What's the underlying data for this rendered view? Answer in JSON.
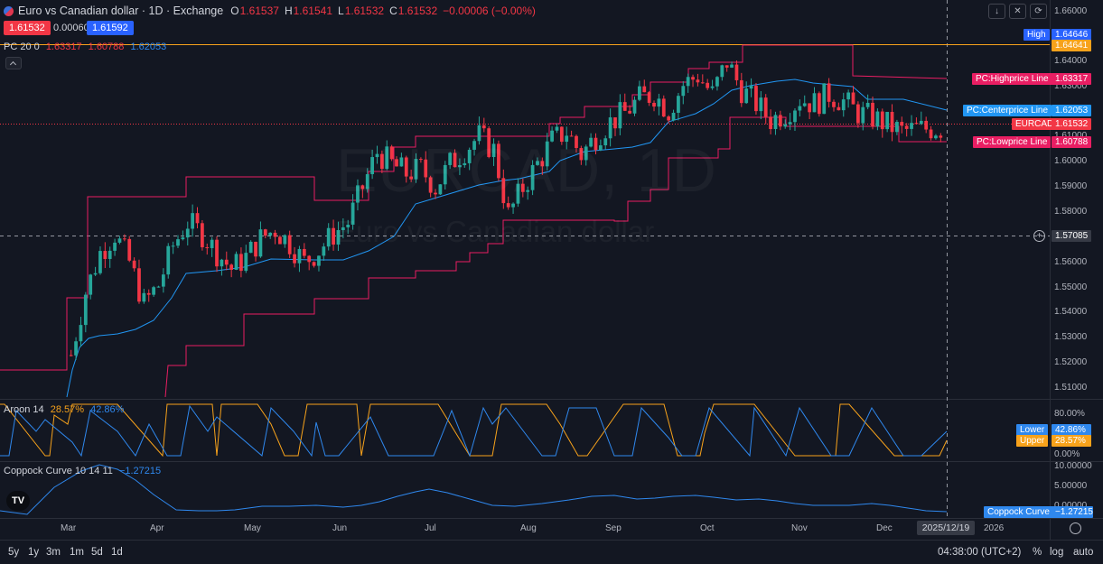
{
  "header": {
    "title": "Euro vs Canadian dollar · 1D · Exchange",
    "open_label": "O",
    "open": "1.61537",
    "high_label": "H",
    "high": "1.61541",
    "low_label": "L",
    "low": "1.61532",
    "close_label": "C",
    "close": "1.61532",
    "change": "−0.00006 (−0.00%)"
  },
  "quote": {
    "bid": "1.61532",
    "spread": "0.00060",
    "ask": "1.61592"
  },
  "pc_legend": {
    "name": "PC 20 0",
    "high": "1.63317",
    "low": "1.60788",
    "center": "1.62053"
  },
  "aroon_legend": {
    "name": "Aroon 14",
    "upper": "28.57%",
    "lower": "42.86%"
  },
  "coppock_legend": {
    "name": "Coppock Curve 10 14 11",
    "value": "−1.27215"
  },
  "watermark": {
    "symbol": "EURCAD, 1D",
    "description": "Euro vs Canadian dollar"
  },
  "price_axis": {
    "ticks": [
      "1.66000",
      "1.64000",
      "1.63000",
      "1.61000",
      "1.60000",
      "1.59000",
      "1.58000",
      "1.56000",
      "1.55000",
      "1.54000",
      "1.53000",
      "1.52000",
      "1.51000"
    ],
    "crosshair_price": "1.57085"
  },
  "price_tags": {
    "high_label": "High",
    "high_value": "1.64646",
    "high_line_value": "1.64641",
    "highprice_label": "PC:Highprice Line",
    "highprice_value": "1.63317",
    "centerprice_label": "PC:Centerprice Line",
    "centerprice_value": "1.62053",
    "symbol_label": "EURCAD",
    "symbol_value": "1.61532",
    "lowprice_label": "PC:Lowprice Line",
    "lowprice_value": "1.60788"
  },
  "aroon_axis": {
    "ticks": [
      "80.00%",
      "0.00%"
    ],
    "lower_label": "Lower",
    "lower_value": "42.86%",
    "upper_label": "Upper",
    "upper_value": "28.57%"
  },
  "coppock_axis": {
    "ticks": [
      "10.00000",
      "5.00000",
      "0.00000"
    ],
    "label": "Coppock Curve",
    "value": "−1.27215"
  },
  "time_axis": {
    "labels": [
      "Mar",
      "Apr",
      "May",
      "Jun",
      "Jul",
      "Aug",
      "Sep",
      "Oct",
      "Nov",
      "Dec",
      "2026"
    ],
    "crosshair_date": "2025/12/19"
  },
  "bottom_bar": {
    "ranges": [
      "5y",
      "1y",
      "3m",
      "1m",
      "5d",
      "1d"
    ],
    "time": "04:38:00 (UTC+2)",
    "percent": "%",
    "log": "log",
    "auto": "auto"
  },
  "colors": {
    "bg": "#131722",
    "up": "#26a69a",
    "down": "#f23645",
    "channel": "#e91e63",
    "center": "#2196f3",
    "aroon_up": "#f7a21b",
    "aroon_down": "#2f88ee",
    "high_line": "#f7a21b"
  },
  "chart_data": {
    "type": "candlestick",
    "ylim": [
      1.5,
      1.665
    ],
    "x_labels": [
      "Mar",
      "Apr",
      "May",
      "Jun",
      "Jul",
      "Aug",
      "Sep",
      "Oct",
      "Nov",
      "Dec",
      "2026"
    ],
    "close_series": [
      1.518,
      1.545,
      1.562,
      1.57,
      1.558,
      1.54,
      1.548,
      1.565,
      1.575,
      1.57,
      1.562,
      1.555,
      1.56,
      1.568,
      1.572,
      1.566,
      1.558,
      1.563,
      1.57,
      1.575,
      1.59,
      1.605,
      1.6,
      1.596,
      1.598,
      1.59,
      1.6,
      1.606,
      1.612,
      1.606,
      1.578,
      1.59,
      1.6,
      1.61,
      1.614,
      1.604,
      1.612,
      1.618,
      1.622,
      1.628,
      1.63,
      1.623,
      1.634,
      1.638,
      1.63,
      1.644,
      1.632,
      1.626,
      1.619,
      1.622,
      1.628,
      1.626,
      1.63,
      1.627,
      1.622,
      1.62,
      1.617,
      1.614,
      1.615,
      1.6153
    ],
    "pc_high_last": 1.63317,
    "pc_center_last": 1.62053,
    "pc_low_last": 1.60788,
    "period_high": 1.64646
  }
}
